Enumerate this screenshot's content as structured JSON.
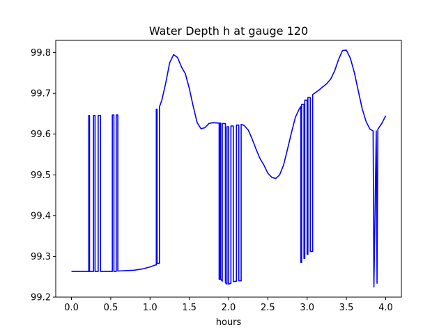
{
  "chart_data": {
    "type": "line",
    "title": "Water Depth h at gauge 120",
    "xlabel": "hours",
    "ylabel": "",
    "xlim": [
      -0.2,
      4.2
    ],
    "ylim": [
      99.2,
      99.83
    ],
    "xticks": [
      0.0,
      0.5,
      1.0,
      1.5,
      2.0,
      2.5,
      3.0,
      3.5,
      4.0
    ],
    "xtick_labels": [
      "0.0",
      "0.5",
      "1.0",
      "1.5",
      "2.0",
      "2.5",
      "3.0",
      "3.5",
      "4.0"
    ],
    "yticks": [
      99.2,
      99.3,
      99.4,
      99.5,
      99.6,
      99.7,
      99.8
    ],
    "ytick_labels": [
      "99.2",
      "99.3",
      "99.4",
      "99.5",
      "99.6",
      "99.7",
      "99.8"
    ],
    "grid": false,
    "colors": {
      "line": "#0000ff",
      "axes": "#000000",
      "background": "#ffffff"
    },
    "series": [
      {
        "x": [
          0.0,
          0.22,
          0.22,
          0.23,
          0.23,
          0.28,
          0.28,
          0.3,
          0.3,
          0.34,
          0.34,
          0.37,
          0.37,
          0.52,
          0.52,
          0.54,
          0.54,
          0.57,
          0.57,
          0.59,
          0.59,
          0.7,
          0.8,
          0.9,
          1.0,
          1.07,
          1.08,
          1.08,
          1.09,
          1.09,
          1.12,
          1.12,
          1.13,
          1.15,
          1.2,
          1.25,
          1.3,
          1.35,
          1.4,
          1.45,
          1.5,
          1.55,
          1.6,
          1.65,
          1.7,
          1.75,
          1.8,
          1.88,
          1.88,
          1.89,
          1.89,
          1.9,
          1.9,
          1.92,
          1.92,
          1.96,
          1.96,
          1.98,
          1.98,
          2.0,
          2.0,
          2.03,
          2.03,
          2.06,
          2.06,
          2.1,
          2.1,
          2.13,
          2.13,
          2.16,
          2.16,
          2.2,
          2.25,
          2.3,
          2.35,
          2.4,
          2.45,
          2.5,
          2.55,
          2.6,
          2.65,
          2.7,
          2.75,
          2.8,
          2.85,
          2.9,
          2.92,
          2.92,
          2.93,
          2.93,
          2.96,
          2.96,
          2.97,
          2.97,
          3.0,
          3.0,
          3.01,
          3.01,
          3.04,
          3.04,
          3.07,
          3.07,
          3.1,
          3.15,
          3.2,
          3.25,
          3.3,
          3.35,
          3.4,
          3.45,
          3.5,
          3.55,
          3.6,
          3.65,
          3.7,
          3.75,
          3.8,
          3.84,
          3.84,
          3.85,
          3.85,
          3.88,
          3.88,
          3.89,
          3.9,
          3.95,
          4.0
        ],
        "y": [
          99.263,
          99.263,
          99.646,
          99.646,
          99.263,
          99.263,
          99.646,
          99.646,
          99.263,
          99.263,
          99.646,
          99.646,
          99.263,
          99.263,
          99.647,
          99.647,
          99.263,
          99.263,
          99.647,
          99.647,
          99.264,
          99.265,
          99.266,
          99.269,
          99.274,
          99.279,
          99.279,
          99.661,
          99.661,
          99.283,
          99.283,
          99.667,
          99.672,
          99.683,
          99.725,
          99.775,
          99.795,
          99.788,
          99.765,
          99.748,
          99.712,
          99.668,
          99.628,
          99.613,
          99.616,
          99.626,
          99.628,
          99.627,
          99.244,
          99.244,
          99.627,
          99.627,
          99.244,
          99.239,
          99.626,
          99.626,
          99.235,
          99.232,
          99.618,
          99.618,
          99.232,
          99.234,
          99.62,
          99.62,
          99.238,
          99.239,
          99.622,
          99.622,
          99.24,
          99.24,
          99.624,
          99.621,
          99.61,
          99.588,
          99.563,
          99.54,
          99.524,
          99.504,
          99.494,
          99.491,
          99.5,
          99.524,
          99.563,
          99.603,
          99.641,
          99.662,
          99.668,
          99.285,
          99.285,
          99.673,
          99.673,
          99.295,
          99.295,
          99.683,
          99.683,
          99.305,
          99.305,
          99.69,
          99.69,
          99.312,
          99.312,
          99.697,
          99.701,
          99.708,
          99.716,
          99.724,
          99.735,
          99.755,
          99.783,
          99.805,
          99.806,
          99.786,
          99.752,
          99.707,
          99.663,
          99.631,
          99.612,
          99.608,
          99.608,
          99.225,
          99.225,
          99.608,
          99.608,
          99.234,
          99.612,
          99.626,
          99.645
        ]
      }
    ]
  }
}
